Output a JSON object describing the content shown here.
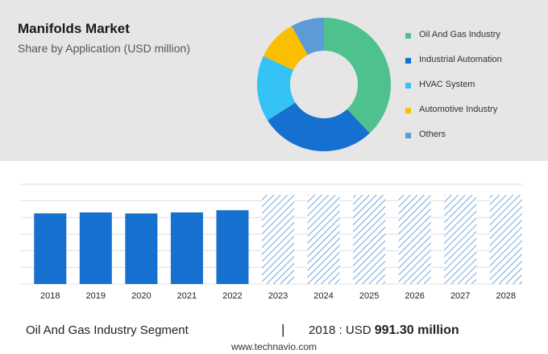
{
  "header": {
    "title": "Manifolds Market",
    "subtitle": "Share by Application (USD million)"
  },
  "chart_data": [
    {
      "type": "pie",
      "donut": true,
      "slices": [
        {
          "label": "Oil And Gas Industry",
          "value": 38,
          "color": "#4fc18f"
        },
        {
          "label": "Industrial Automation",
          "value": 28,
          "color": "#1670d0"
        },
        {
          "label": "HVAC System",
          "value": 16,
          "color": "#34c3f4"
        },
        {
          "label": "Automotive Industry",
          "value": 10,
          "color": "#f9bf00"
        },
        {
          "label": "Others",
          "value": 8,
          "color": "#5c9bd6"
        }
      ],
      "legend_position": "right"
    },
    {
      "type": "bar",
      "categories": [
        "2018",
        "2019",
        "2020",
        "2021",
        "2022",
        "2023",
        "2024",
        "2025",
        "2026",
        "2027",
        "2028"
      ],
      "values": [
        991.3,
        1005,
        990,
        1005,
        1035,
        1250,
        1250,
        1250,
        1250,
        1250,
        1250
      ],
      "forecast_from": "2023",
      "bar_color": "#1670d0",
      "forecast_color": "#4d8fd6",
      "ylim": [
        0,
        1400
      ],
      "grid": true
    }
  ],
  "footer": {
    "segment": "Oil And Gas Industry Segment",
    "separator": "|",
    "year_label": "2018 : USD",
    "value": "991.30 million",
    "source": "www.technavio.com"
  }
}
